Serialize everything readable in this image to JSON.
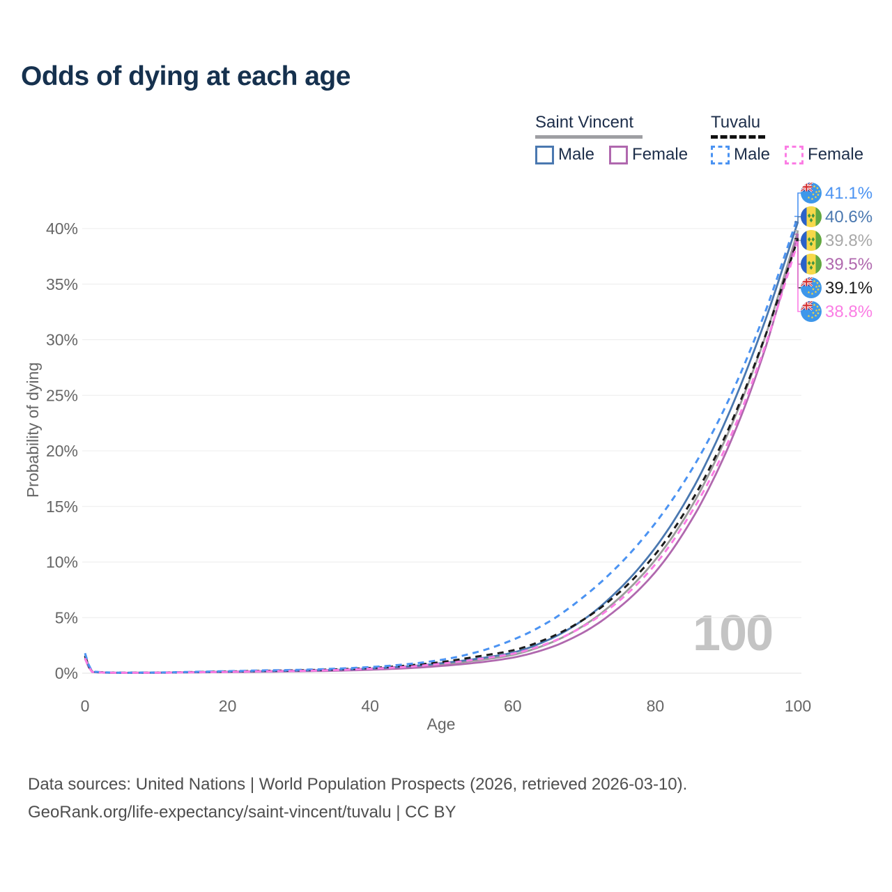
{
  "title": "Odds of dying at each age",
  "watermark_age": "100",
  "legend": {
    "groups": [
      {
        "name": "Saint Vincent",
        "line_style": "solid",
        "underline_color": "#9e9fa3",
        "items": [
          {
            "label": "Male",
            "color": "#4a78b0"
          },
          {
            "label": "Female",
            "color": "#b068ae"
          }
        ]
      },
      {
        "name": "Tuvalu",
        "line_style": "dashed",
        "underline_color": "#111111",
        "items": [
          {
            "label": "Male",
            "color": "#4b93f2"
          },
          {
            "label": "Female",
            "color": "#fb7de4"
          }
        ]
      }
    ]
  },
  "chart_data": {
    "type": "line",
    "title": "Odds of dying at each age",
    "xlabel": "Age",
    "ylabel": "Probability of dying",
    "xlim": [
      0,
      100
    ],
    "ylim": [
      0,
      43
    ],
    "grid": true,
    "legend_position": "top-right",
    "x_ticks": [
      0,
      20,
      40,
      60,
      80,
      100
    ],
    "y_tick_values": [
      0,
      5,
      10,
      15,
      20,
      25,
      30,
      35,
      40
    ],
    "y_tick_labels": [
      "0%",
      "5%",
      "10%",
      "15%",
      "20%",
      "25%",
      "30%",
      "35%",
      "40%"
    ],
    "x": [
      0,
      1,
      5,
      10,
      15,
      20,
      25,
      30,
      35,
      40,
      45,
      50,
      55,
      60,
      65,
      70,
      75,
      80,
      85,
      90,
      95,
      100
    ],
    "series": [
      {
        "name": "Tuvalu Male",
        "country": "Tuvalu",
        "sex": "male",
        "color": "#4b93f2",
        "line_style": "dashed",
        "flag": "tuvalu-flag",
        "end_label": "41.1%",
        "end_label_color": "#4b93f2",
        "values": [
          1.8,
          0.15,
          0.05,
          0.06,
          0.12,
          0.18,
          0.25,
          0.3,
          0.4,
          0.55,
          0.8,
          1.2,
          1.9,
          3.0,
          4.6,
          6.9,
          9.8,
          13.5,
          18.2,
          24.2,
          31.8,
          41.1
        ]
      },
      {
        "name": "Saint Vincent Male",
        "country": "Saint Vincent",
        "sex": "male",
        "color": "#4a78b0",
        "line_style": "solid",
        "flag": "saint-vincent-flag",
        "end_label": "40.6%",
        "end_label_color": "#4a78b0",
        "values": [
          1.6,
          0.12,
          0.04,
          0.05,
          0.09,
          0.14,
          0.18,
          0.23,
          0.3,
          0.42,
          0.6,
          0.9,
          1.3,
          1.85,
          3.0,
          4.85,
          7.6,
          11.3,
          16.3,
          22.9,
          31.0,
          40.6
        ]
      },
      {
        "name": "Saint Vincent",
        "country": "Saint Vincent",
        "sex": "all",
        "color": "#9b9b9b",
        "line_style": "solid",
        "flag": "saint-vincent-flag",
        "end_label": "39.8%",
        "end_label_color": "#a8a8a8",
        "values": [
          1.45,
          0.11,
          0.04,
          0.045,
          0.08,
          0.12,
          0.16,
          0.2,
          0.26,
          0.37,
          0.52,
          0.78,
          1.15,
          1.65,
          2.65,
          4.3,
          6.8,
          10.2,
          14.9,
          21.3,
          29.5,
          39.8
        ]
      },
      {
        "name": "Saint Vincent Female",
        "country": "Saint Vincent",
        "sex": "female",
        "color": "#b068ae",
        "line_style": "solid",
        "flag": "saint-vincent-flag",
        "end_label": "39.5%",
        "end_label_color": "#b068ae",
        "values": [
          1.3,
          0.1,
          0.03,
          0.04,
          0.07,
          0.1,
          0.13,
          0.17,
          0.22,
          0.31,
          0.44,
          0.65,
          0.95,
          1.4,
          2.25,
          3.7,
          5.95,
          9.1,
          13.7,
          20.0,
          28.4,
          39.5
        ]
      },
      {
        "name": "Tuvalu",
        "country": "Tuvalu",
        "sex": "all",
        "color": "#1b1b1b",
        "line_style": "dashed",
        "flag": "tuvalu-flag",
        "end_label": "39.1%",
        "end_label_color": "#1b1b1b",
        "values": [
          1.55,
          0.13,
          0.045,
          0.055,
          0.1,
          0.15,
          0.21,
          0.26,
          0.34,
          0.47,
          0.68,
          1.0,
          1.5,
          2.05,
          3.15,
          4.85,
          7.3,
          10.7,
          15.4,
          21.6,
          29.6,
          39.1
        ]
      },
      {
        "name": "Tuvalu Female",
        "country": "Tuvalu",
        "sex": "female",
        "color": "#fb7de4",
        "line_style": "dashed",
        "flag": "tuvalu-flag",
        "end_label": "38.8%",
        "end_label_color": "#fb7de4",
        "values": [
          1.35,
          0.11,
          0.035,
          0.045,
          0.08,
          0.12,
          0.17,
          0.21,
          0.28,
          0.4,
          0.57,
          0.85,
          1.25,
          1.75,
          2.7,
          4.25,
          6.55,
          9.8,
          14.4,
          20.5,
          28.7,
          38.8
        ]
      }
    ]
  },
  "footer": {
    "line1": "Data sources: United Nations | World Population Prospects (2026, retrieved 2026-03-10).",
    "line2": "GeoRank.org/life-expectancy/saint-vincent/tuvalu | CC BY"
  }
}
